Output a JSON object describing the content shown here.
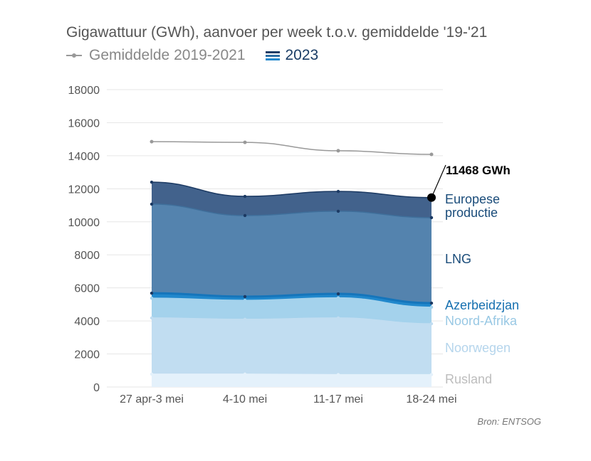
{
  "chart_data": {
    "type": "area",
    "title": "Gigawattuur (GWh), aanvoer per week t.o.v. gemiddelde '19-'21",
    "legend": [
      {
        "label": "Gemiddelde 2019-2021",
        "color": "#999999"
      },
      {
        "label": "2023",
        "color": "#1a3d66"
      }
    ],
    "categories": [
      "27 apr-3 mei",
      "4-10 mei",
      "11-17 mei",
      "18-24 mei"
    ],
    "ylim": [
      0,
      18000
    ],
    "yticks": [
      "0",
      "2000",
      "4000",
      "6000",
      "8000",
      "10000",
      "12000",
      "14000",
      "16000",
      "18000"
    ],
    "stacked_series": [
      {
        "name": "Rusland",
        "values": [
          780,
          780,
          750,
          750
        ],
        "fill": "#e4f1fb",
        "label_color": "#bdbdbd"
      },
      {
        "name": "Noorwegen",
        "values": [
          3400,
          3320,
          3430,
          3080
        ],
        "fill": "#c1ddf1",
        "label_color": "#b5d5ec"
      },
      {
        "name": "Noord-Afrika",
        "values": [
          1200,
          1150,
          1220,
          1000
        ],
        "fill": "#a4d2ec",
        "label_color": "#98c8e4"
      },
      {
        "name": "Azerbeidzjan",
        "values": [
          300,
          220,
          240,
          250
        ],
        "fill": "#2188cc",
        "label_color": "#1670b0"
      },
      {
        "name": "LNG",
        "values": [
          5390,
          4910,
          5000,
          5170
        ],
        "fill": "#5483ae",
        "label_color": "#1a4c7a"
      },
      {
        "name": "Europese productie",
        "values": [
          1330,
          1160,
          1200,
          1218
        ],
        "fill": "#42628c",
        "label_color": "#1a4c7a"
      }
    ],
    "average_series": {
      "name": "Gemiddelde 2019-2021",
      "values": [
        14850,
        14810,
        14300,
        14080
      ],
      "color": "#999999"
    },
    "annotation": "11468 GWh",
    "grid": true
  },
  "source": "Bron: ENTSOG"
}
